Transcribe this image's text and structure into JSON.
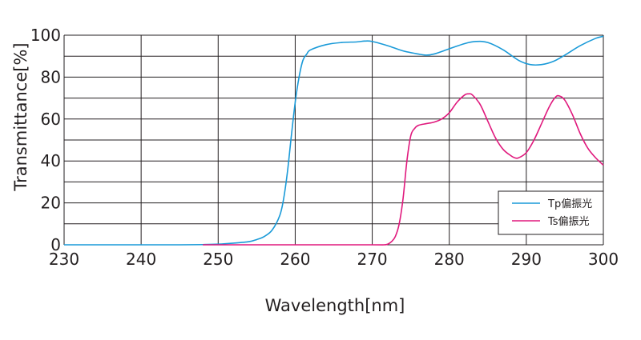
{
  "chart_data": {
    "type": "line",
    "title": "",
    "xlabel": "Wavelength[nm]",
    "ylabel": "Transmittance[%]",
    "xlim": [
      230,
      300
    ],
    "ylim": [
      0,
      100
    ],
    "xticks": [
      230,
      240,
      250,
      260,
      270,
      280,
      290,
      300
    ],
    "yticks": [
      0,
      20,
      40,
      60,
      80,
      100
    ],
    "ygrid": [
      0,
      10,
      20,
      30,
      40,
      50,
      60,
      70,
      80,
      90,
      100
    ],
    "grid": true,
    "legend_position": "bottom-right",
    "series": [
      {
        "name": "Tp偏振光",
        "color": "#1a9ad8",
        "points": [
          [
            230,
            0
          ],
          [
            240,
            0
          ],
          [
            245,
            0
          ],
          [
            248,
            0.1
          ],
          [
            250,
            0.3
          ],
          [
            252,
            0.8
          ],
          [
            254,
            1.5
          ],
          [
            255,
            2.5
          ],
          [
            256,
            4
          ],
          [
            257,
            7
          ],
          [
            258,
            14
          ],
          [
            258.5,
            22
          ],
          [
            259,
            35
          ],
          [
            259.5,
            52
          ],
          [
            260,
            68
          ],
          [
            260.5,
            80
          ],
          [
            261,
            88
          ],
          [
            261.5,
            91
          ],
          [
            262,
            93
          ],
          [
            264,
            95.5
          ],
          [
            266,
            96.5
          ],
          [
            268,
            96.8
          ],
          [
            269,
            97.2
          ],
          [
            270,
            97
          ],
          [
            272,
            95
          ],
          [
            274,
            92.5
          ],
          [
            276,
            91
          ],
          [
            277,
            90.5
          ],
          [
            278,
            91
          ],
          [
            280,
            93.5
          ],
          [
            282,
            96
          ],
          [
            283.5,
            97
          ],
          [
            285,
            96.5
          ],
          [
            287,
            93
          ],
          [
            289,
            88
          ],
          [
            290.5,
            86
          ],
          [
            292,
            86
          ],
          [
            293.5,
            87.5
          ],
          [
            295,
            90.5
          ],
          [
            297,
            95
          ],
          [
            299,
            98.5
          ],
          [
            300,
            99.5
          ]
        ]
      },
      {
        "name": "Ts偏振光",
        "color": "#e0197d",
        "points": [
          [
            248,
            0
          ],
          [
            260,
            0
          ],
          [
            270,
            0
          ],
          [
            271.5,
            0
          ],
          [
            272,
            0.3
          ],
          [
            272.5,
            1.5
          ],
          [
            273,
            4
          ],
          [
            273.5,
            10
          ],
          [
            274,
            22
          ],
          [
            274.5,
            40
          ],
          [
            275,
            52
          ],
          [
            275.5,
            55.5
          ],
          [
            276,
            57
          ],
          [
            277,
            57.8
          ],
          [
            278,
            58.5
          ],
          [
            279,
            60
          ],
          [
            280,
            63
          ],
          [
            281,
            68
          ],
          [
            282,
            71.5
          ],
          [
            282.5,
            72
          ],
          [
            283,
            71.5
          ],
          [
            284,
            67
          ],
          [
            285,
            59
          ],
          [
            286,
            51
          ],
          [
            287,
            45.5
          ],
          [
            288,
            42.5
          ],
          [
            288.5,
            41.5
          ],
          [
            289,
            41.5
          ],
          [
            290,
            44
          ],
          [
            291,
            50
          ],
          [
            292,
            58
          ],
          [
            293,
            66
          ],
          [
            293.8,
            70.5
          ],
          [
            294.3,
            71
          ],
          [
            295,
            69
          ],
          [
            296,
            62
          ],
          [
            297,
            53
          ],
          [
            298,
            46
          ],
          [
            299,
            41.5
          ],
          [
            300,
            38
          ]
        ]
      }
    ],
    "legend": [
      {
        "label": "Tp偏振光",
        "color": "#1a9ad8"
      },
      {
        "label": "Ts偏振光",
        "color": "#e0197d"
      }
    ]
  }
}
